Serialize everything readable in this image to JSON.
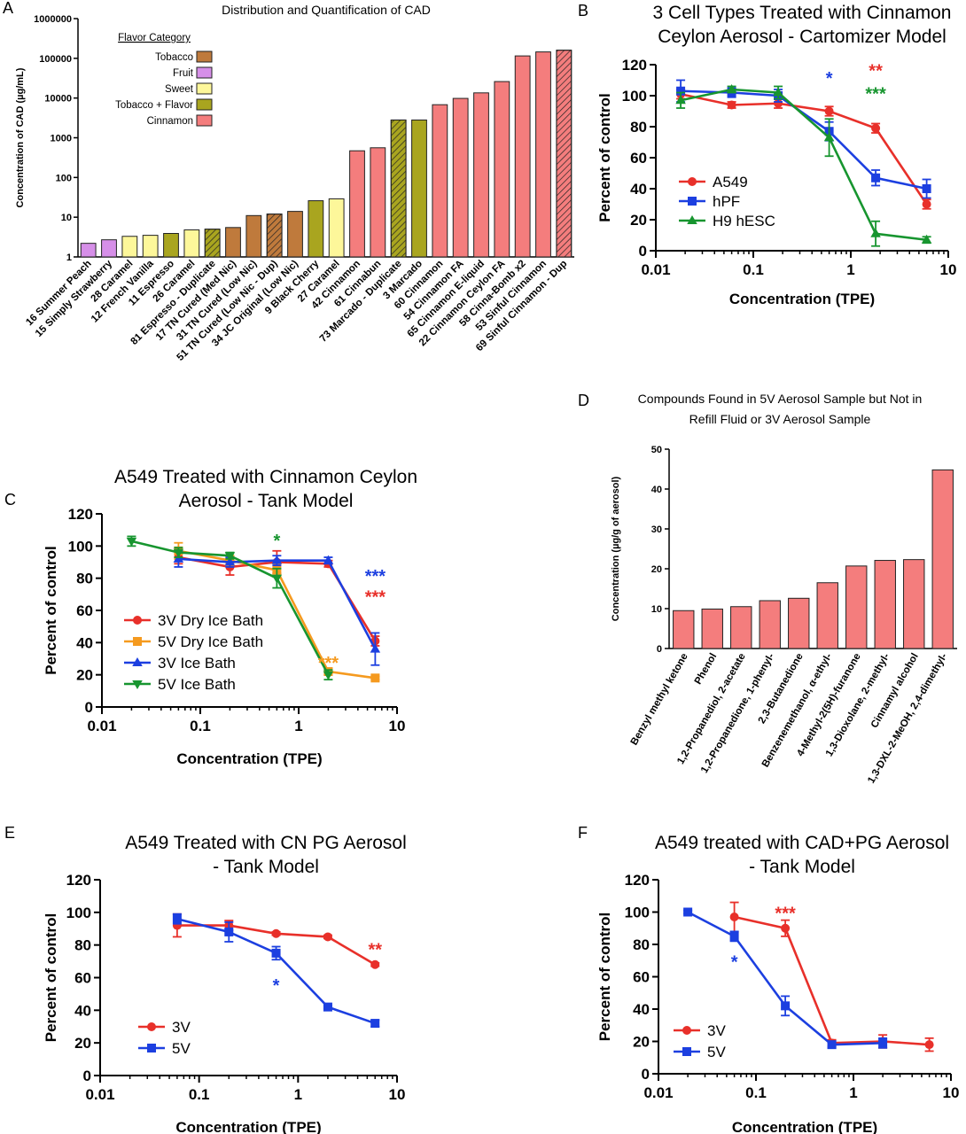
{
  "chart_data": [
    {
      "id": "A",
      "panel_label": "A",
      "type": "bar",
      "title": "Distribution and Quantification of CAD",
      "ylabel": "Concentration of CAD (µg/mL)",
      "yscale": "log",
      "ylim": [
        1,
        1000000
      ],
      "yticks": [
        "1",
        "10",
        "100",
        "1000",
        "10000",
        "100000",
        "1000000"
      ],
      "legend_title": "Flavor Category",
      "legend": [
        {
          "name": "Tobacco",
          "color": "#bf7a3c"
        },
        {
          "name": "Fruit",
          "color": "#d68fe8"
        },
        {
          "name": "Sweet",
          "color": "#fdf79a"
        },
        {
          "name": "Tobacco + Flavor",
          "color": "#a9a51f"
        },
        {
          "name": "Cinnamon",
          "color": "#f47d7d"
        }
      ],
      "categories": [
        "16 Summer Peach",
        "15 Simply Strawberry",
        "28 Caramel",
        "12 French Vanilla",
        "11 Espresso",
        "26 Caramel",
        "81 Espresso - Duplicate",
        "17 TN Cured (Med Nic)",
        "31 TN Cured (Low Nic)",
        "51 TN Cured (Low Nic - Dup)",
        "34 JC Original (Low Nic)",
        "9 Black Cherry",
        "27 Caramel",
        "42 Cinnamon",
        "61 Cinnabun",
        "73 Marcado - Duplicate",
        "3 Marcado",
        "60 Cinnamon",
        "54 Cinnamon FA",
        "65 Cinnamon E-liquid",
        "22 Cinnamon Ceylon FA",
        "58 Cinna-Bomb x2",
        "53 Sinful Cinnamon",
        "69 Sinful Cinnamon - Dup"
      ],
      "values": [
        2.2,
        2.7,
        3.3,
        3.5,
        3.9,
        4.8,
        5.0,
        5.5,
        11,
        12,
        14,
        26,
        29,
        470,
        560,
        2800,
        2800,
        6800,
        9800,
        13500,
        26000,
        115000,
        145000,
        160000
      ],
      "bar_categories": [
        "Fruit",
        "Fruit",
        "Sweet",
        "Sweet",
        "Tobacco + Flavor",
        "Sweet",
        "Tobacco + Flavor",
        "Tobacco",
        "Tobacco",
        "Tobacco",
        "Tobacco",
        "Tobacco + Flavor",
        "Sweet",
        "Cinnamon",
        "Cinnamon",
        "Tobacco + Flavor",
        "Tobacco + Flavor",
        "Cinnamon",
        "Cinnamon",
        "Cinnamon",
        "Cinnamon",
        "Cinnamon",
        "Cinnamon",
        "Cinnamon"
      ],
      "hatched": [
        false,
        false,
        false,
        false,
        false,
        false,
        true,
        false,
        false,
        true,
        false,
        false,
        false,
        false,
        false,
        true,
        false,
        false,
        false,
        false,
        false,
        false,
        false,
        true
      ]
    },
    {
      "id": "B",
      "panel_label": "B",
      "type": "line",
      "title": [
        "3 Cell Types Treated with Cinnamon",
        "Ceylon Aerosol - Cartomizer Model"
      ],
      "xlabel": "Concentration (TPE)",
      "ylabel": "Percent of control",
      "xscale": "log",
      "xlim": [
        0.01,
        10
      ],
      "ylim": [
        0,
        120
      ],
      "xticks": [
        "0.01",
        "0.1",
        "1",
        "10"
      ],
      "yticks": [
        "0",
        "20",
        "40",
        "60",
        "80",
        "100",
        "120"
      ],
      "series": [
        {
          "name": "A549",
          "color": "#e8302a",
          "marker": "circle",
          "x": [
            0.018,
            0.06,
            0.18,
            0.6,
            1.8,
            6
          ],
          "y": [
            101,
            94,
            95,
            90,
            79,
            30
          ],
          "err": [
            3,
            2,
            3,
            3,
            3,
            3
          ]
        },
        {
          "name": "hPF",
          "color": "#1c3fe0",
          "marker": "square",
          "x": [
            0.018,
            0.06,
            0.18,
            0.6,
            1.8,
            6
          ],
          "y": [
            103,
            102,
            100,
            77,
            47,
            40
          ],
          "err": [
            7,
            3,
            4,
            6,
            5,
            6
          ]
        },
        {
          "name": "H9 hESC",
          "color": "#17952f",
          "marker": "triangle",
          "x": [
            0.018,
            0.06,
            0.18,
            0.6,
            1.8,
            6
          ],
          "y": [
            97,
            104,
            102,
            73,
            11,
            7
          ],
          "err": [
            5,
            2,
            4,
            12,
            8,
            2
          ]
        }
      ],
      "annotations": [
        {
          "text": "*",
          "x": 0.6,
          "y": 112,
          "color": "#1c3fe0"
        },
        {
          "text": "**",
          "x": 1.8,
          "y": 117,
          "color": "#e8302a"
        },
        {
          "text": "***",
          "x": 1.8,
          "y": 102,
          "color": "#17952f"
        }
      ]
    },
    {
      "id": "C",
      "panel_label": "C",
      "type": "line",
      "title": [
        "A549 Treated with Cinnamon Ceylon",
        "Aerosol - Tank Model"
      ],
      "xlabel": "Concentration (TPE)",
      "ylabel": "Percent of control",
      "xscale": "log",
      "xlim": [
        0.01,
        10
      ],
      "ylim": [
        0,
        120
      ],
      "xticks": [
        "0.01",
        "0.1",
        "1",
        "10"
      ],
      "yticks": [
        "0",
        "20",
        "40",
        "60",
        "80",
        "100",
        "120"
      ],
      "series": [
        {
          "name": "3V Dry Ice Bath",
          "color": "#e8302a",
          "marker": "circle",
          "x": [
            0.06,
            0.2,
            0.6,
            2,
            6
          ],
          "y": [
            93,
            87,
            90,
            89,
            41
          ],
          "err": [
            4,
            5,
            7,
            2,
            3
          ]
        },
        {
          "name": "5V Dry Ice Bath",
          "color": "#f59a1f",
          "marker": "square",
          "x": [
            0.06,
            0.2,
            0.6,
            2,
            6
          ],
          "y": [
            97,
            91,
            85,
            22,
            18
          ],
          "err": [
            5,
            3,
            4,
            2,
            1
          ]
        },
        {
          "name": "3V Ice Bath",
          "color": "#1c3fe0",
          "marker": "triangle",
          "x": [
            0.06,
            0.2,
            0.6,
            2,
            6
          ],
          "y": [
            92,
            90,
            91,
            91,
            36
          ],
          "err": [
            5,
            3,
            3,
            2,
            10
          ]
        },
        {
          "name": "5V Ice Bath",
          "color": "#17952f",
          "marker": "triangle-down",
          "x": [
            0.02,
            0.06,
            0.2,
            0.6,
            2
          ],
          "y": [
            103,
            96,
            94,
            80,
            20
          ],
          "err": [
            3,
            3,
            2,
            6,
            3
          ]
        }
      ],
      "annotations": [
        {
          "text": "*",
          "x": 0.6,
          "y": 104,
          "color": "#17952f"
        },
        {
          "text": "***",
          "x": 2,
          "y": 28,
          "color": "#f59a1f"
        },
        {
          "text": "***",
          "x": 6,
          "y": 82,
          "color": "#1c3fe0"
        },
        {
          "text": "***",
          "x": 6,
          "y": 69,
          "color": "#e8302a"
        }
      ]
    },
    {
      "id": "D",
      "panel_label": "D",
      "type": "bar",
      "title": [
        "Compounds Found in 5V Aerosol Sample but Not in",
        "Refill Fluid or 3V Aerosol Sample"
      ],
      "ylabel": "Concentration (µg/g of aerosol)",
      "ylim": [
        0,
        50
      ],
      "yticks": [
        "0",
        "10",
        "20",
        "30",
        "40",
        "50"
      ],
      "color": "#f47d7d",
      "categories": [
        "Benzyl methyl ketone",
        "Phenol",
        "1,2-Propanediol, 2-acetate",
        "1,2-Propanedione, 1-phenyl-",
        "2,3-Butanedione",
        "Benzenemethanol, α-ethyl-",
        "4-Methyl-2(5H)-furanone",
        "1,3-Dioxolane, 2-methyl-",
        "Cinnamyl alcohol",
        "1,3-DXL-2-MeOH, 2,4-dimethyl-"
      ],
      "values": [
        9.5,
        9.9,
        10.5,
        12,
        12.6,
        16.5,
        20.7,
        22.1,
        22.3,
        44.8
      ]
    },
    {
      "id": "E",
      "panel_label": "E",
      "type": "line",
      "title": [
        "A549 Treated with CN PG Aerosol",
        "- Tank Model"
      ],
      "xlabel": "Concentration (TPE)",
      "ylabel": "Percent of control",
      "xscale": "log",
      "xlim": [
        0.01,
        10
      ],
      "ylim": [
        0,
        120
      ],
      "xticks": [
        "0.01",
        "0.1",
        "1",
        "10"
      ],
      "yticks": [
        "0",
        "20",
        "40",
        "60",
        "80",
        "100",
        "120"
      ],
      "series": [
        {
          "name": "3V",
          "color": "#e8302a",
          "marker": "circle",
          "x": [
            0.06,
            0.2,
            0.6,
            2,
            6
          ],
          "y": [
            92,
            92,
            87,
            85,
            68
          ],
          "err": [
            7,
            3,
            1,
            1,
            1
          ]
        },
        {
          "name": "5V",
          "color": "#1c3fe0",
          "marker": "square",
          "x": [
            0.06,
            0.2,
            0.6,
            2,
            6
          ],
          "y": [
            96,
            88,
            75,
            42,
            32
          ],
          "err": [
            3,
            6,
            4,
            1,
            2
          ]
        }
      ],
      "annotations": [
        {
          "text": "**",
          "x": 6,
          "y": 78,
          "color": "#e8302a"
        },
        {
          "text": "*",
          "x": 0.6,
          "y": 56,
          "color": "#1c3fe0"
        }
      ]
    },
    {
      "id": "F",
      "panel_label": "F",
      "type": "line",
      "title": [
        "A549 treated with CAD+PG Aerosol",
        "- Tank Model"
      ],
      "xlabel": "Concentration (TPE)",
      "ylabel": "Percent of control",
      "xscale": "log",
      "xlim": [
        0.01,
        10
      ],
      "ylim": [
        0,
        120
      ],
      "xticks": [
        "0.01",
        "0.1",
        "1",
        "10"
      ],
      "yticks": [
        "0",
        "20",
        "40",
        "60",
        "80",
        "100",
        "120"
      ],
      "series": [
        {
          "name": "3V",
          "color": "#e8302a",
          "marker": "circle",
          "x": [
            0.06,
            0.2,
            0.6,
            2,
            6
          ],
          "y": [
            97,
            90,
            19,
            20,
            18
          ],
          "err": [
            9,
            5,
            2,
            4,
            4
          ]
        },
        {
          "name": "5V",
          "color": "#1c3fe0",
          "marker": "square",
          "x": [
            0.02,
            0.06,
            0.2,
            0.6,
            2
          ],
          "y": [
            100,
            85,
            42,
            18,
            19
          ],
          "err": [
            1,
            3,
            6,
            2,
            3
          ]
        }
      ],
      "annotations": [
        {
          "text": "***",
          "x": 0.2,
          "y": 100,
          "color": "#e8302a"
        },
        {
          "text": "*",
          "x": 0.06,
          "y": 70,
          "color": "#1c3fe0"
        }
      ]
    }
  ]
}
